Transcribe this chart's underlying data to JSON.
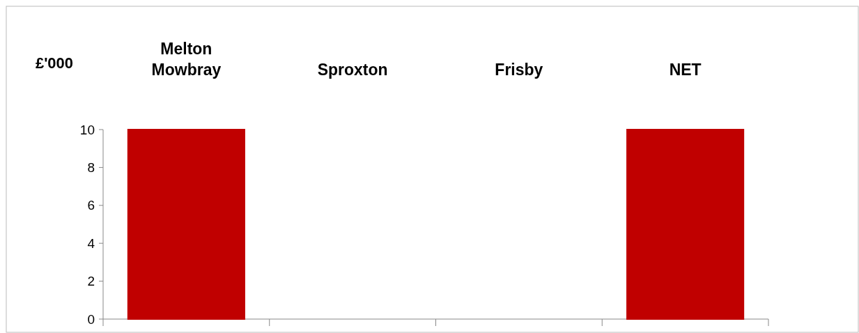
{
  "chart_data": {
    "type": "bar",
    "ylabel": "£'000",
    "categories": [
      "Melton Mowbray",
      "Sproxton",
      "Frisby",
      "NET"
    ],
    "values": [
      10,
      0,
      0,
      10
    ],
    "colors": [
      "#c00000",
      "#70a03c",
      "#70a03c",
      "#c00000"
    ],
    "ylim": [
      0,
      10
    ],
    "yticks": [
      0,
      2,
      4,
      6,
      8,
      10
    ],
    "grid": false
  }
}
